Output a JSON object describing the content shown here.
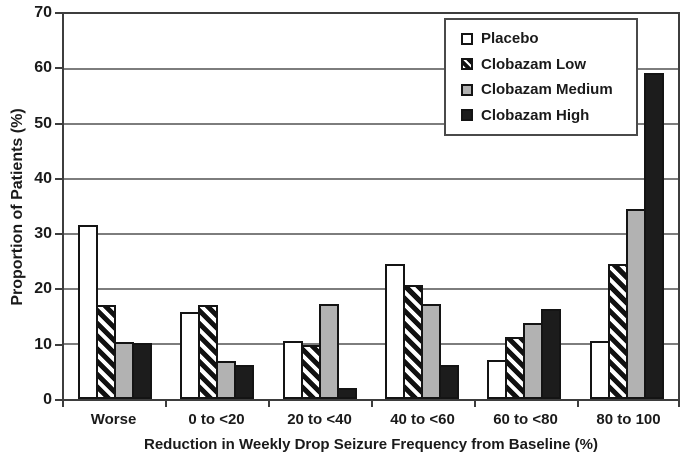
{
  "chart_data": {
    "type": "bar",
    "title": "",
    "xlabel": "Reduction in Weekly Drop Seizure Frequency from Baseline (%)",
    "ylabel": "Proportion of Patients (%)",
    "ylim": [
      0,
      70
    ],
    "yticks": [
      0,
      10,
      20,
      30,
      40,
      50,
      60,
      70
    ],
    "grid": "horizontal gray lines at every 10",
    "legend_position": "top-right inside plot",
    "categories": [
      "Worse",
      "0 to <20",
      "20 to <40",
      "40 to <60",
      "60 to <80",
      "80 to 100"
    ],
    "series": [
      {
        "name": "Placebo",
        "style": "white",
        "values": [
          31.6,
          15.8,
          10.5,
          24.6,
          7.0,
          10.5
        ]
      },
      {
        "name": "Clobazam Low",
        "style": "hatch",
        "values": [
          17.0,
          17.0,
          9.8,
          20.8,
          11.3,
          24.5
        ]
      },
      {
        "name": "Clobazam Medium",
        "style": "gray",
        "values": [
          10.3,
          6.9,
          17.2,
          17.2,
          13.8,
          34.5
        ]
      },
      {
        "name": "Clobazam High",
        "style": "black",
        "values": [
          10.2,
          6.1,
          2.0,
          6.1,
          16.3,
          59.2
        ]
      }
    ],
    "colors": {
      "white_fill": "#ffffff",
      "gray_fill": "#b2b2b2",
      "black_fill": "#1c1c1c",
      "hatch_fg": "#111111",
      "hatch_bg": "#ffffff",
      "gridline": "#7d7d7d",
      "axis_box": "#3d3d3d"
    }
  }
}
